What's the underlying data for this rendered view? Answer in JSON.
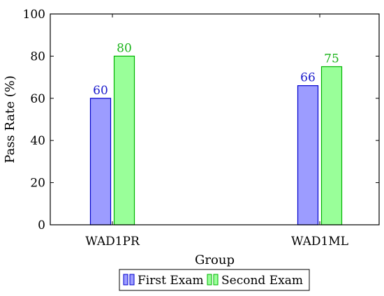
{
  "chart_data": {
    "type": "bar",
    "title": "",
    "xlabel": "Group",
    "ylabel": "Pass Rate (%)",
    "ylim": [
      0,
      100
    ],
    "yticks": [
      0,
      20,
      40,
      60,
      80,
      100
    ],
    "categories": [
      "WAD1PR",
      "WAD1ML"
    ],
    "grid": false,
    "legend_position": "bottom-center",
    "series": [
      {
        "name": "First Exam",
        "values": [
          60,
          66
        ],
        "fill": "#9c9cff",
        "stroke": "#0000cc",
        "label_color": "#1a1acc"
      },
      {
        "name": "Second Exam",
        "values": [
          80,
          75
        ],
        "fill": "#99ff99",
        "stroke": "#00b300",
        "label_color": "#19b319"
      }
    ]
  }
}
